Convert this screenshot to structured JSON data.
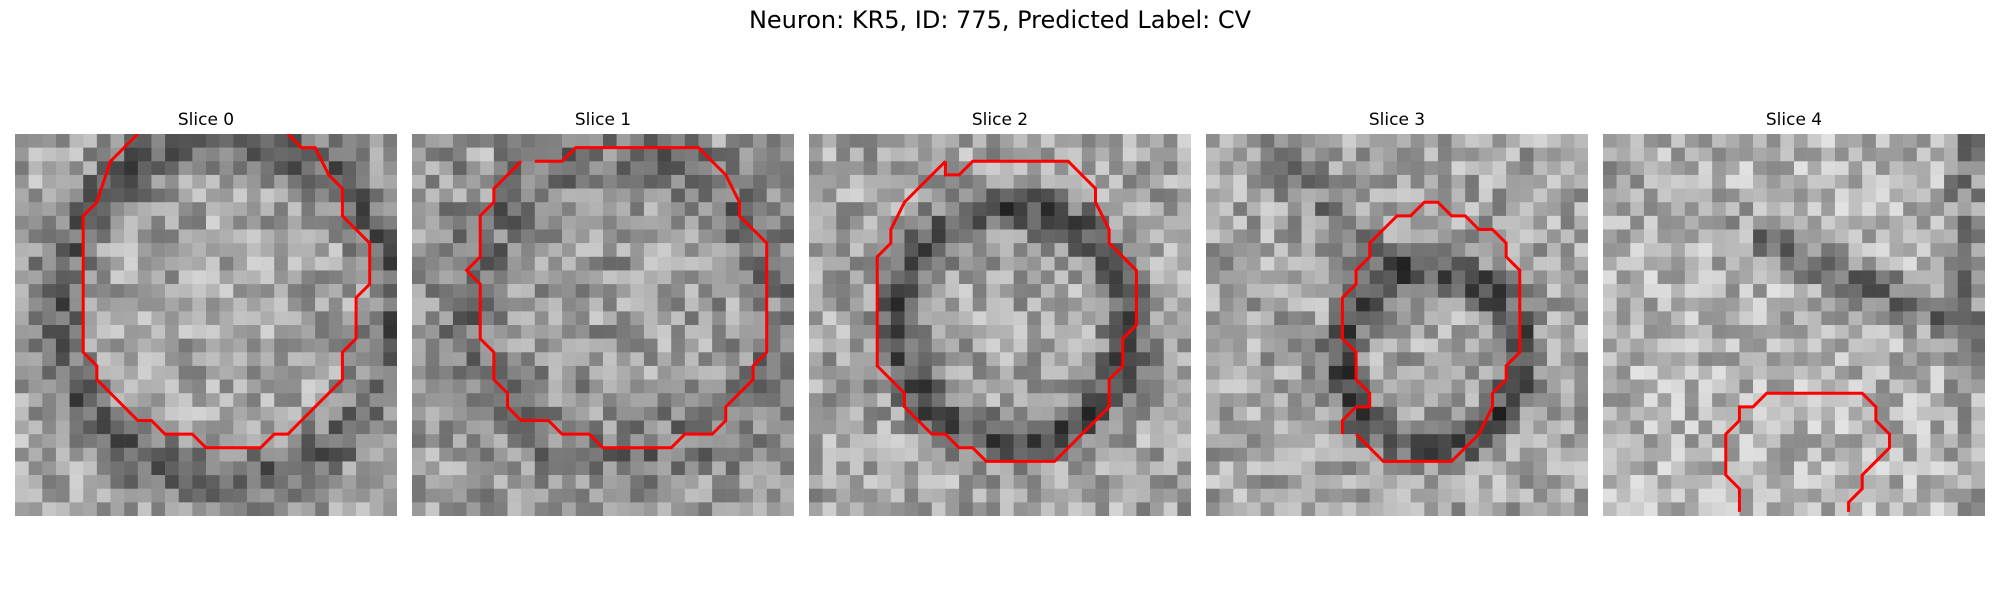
{
  "figure": {
    "title": "Neuron: KR5, ID: 775, Predicted Label: CV"
  },
  "panels": [
    {
      "label": "Slice 0"
    },
    {
      "label": "Slice 1"
    },
    {
      "label": "Slice 2"
    },
    {
      "label": "Slice 3"
    },
    {
      "label": "Slice 4"
    }
  ],
  "colors": {
    "contour": "#ff0000",
    "background": "#ffffff"
  }
}
